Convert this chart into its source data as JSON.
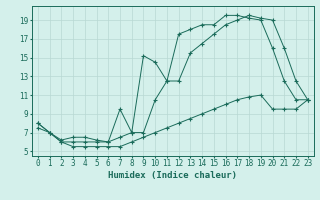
{
  "xlabel": "Humidex (Indice chaleur)",
  "bg_color": "#d4f0eb",
  "grid_color": "#b8d8d3",
  "line_color": "#1a6b5a",
  "line1_x": [
    0,
    1,
    2,
    3,
    4,
    5,
    6,
    7,
    8,
    9,
    10,
    11,
    12,
    13,
    14,
    15,
    16,
    17,
    18,
    19,
    20,
    21,
    22,
    23
  ],
  "line1_y": [
    8.0,
    7.0,
    6.2,
    6.5,
    6.5,
    6.2,
    6.0,
    9.5,
    7.0,
    15.2,
    14.5,
    12.5,
    17.5,
    18.0,
    18.5,
    18.5,
    19.5,
    19.5,
    19.2,
    19.0,
    16.0,
    12.5,
    10.5,
    10.5
  ],
  "line2_x": [
    0,
    1,
    2,
    3,
    4,
    5,
    6,
    7,
    8,
    9,
    10,
    11,
    12,
    13,
    14,
    15,
    16,
    17,
    18,
    19,
    20,
    21,
    22,
    23
  ],
  "line2_y": [
    8.0,
    7.0,
    6.0,
    6.0,
    6.0,
    6.0,
    6.0,
    6.5,
    7.0,
    7.0,
    10.5,
    12.5,
    12.5,
    15.5,
    16.5,
    17.5,
    18.5,
    19.0,
    19.5,
    19.2,
    19.0,
    16.0,
    12.5,
    10.5
  ],
  "line3_x": [
    0,
    1,
    2,
    3,
    4,
    5,
    6,
    7,
    8,
    9,
    10,
    11,
    12,
    13,
    14,
    15,
    16,
    17,
    18,
    19,
    20,
    21,
    22,
    23
  ],
  "line3_y": [
    7.5,
    7.0,
    6.0,
    5.5,
    5.5,
    5.5,
    5.5,
    5.5,
    6.0,
    6.5,
    7.0,
    7.5,
    8.0,
    8.5,
    9.0,
    9.5,
    10.0,
    10.5,
    10.8,
    11.0,
    9.5,
    9.5,
    9.5,
    10.5
  ],
  "xlim": [
    -0.5,
    23.5
  ],
  "ylim": [
    4.5,
    20.5
  ],
  "yticks": [
    5,
    7,
    9,
    11,
    13,
    15,
    17,
    19
  ],
  "xticks": [
    0,
    1,
    2,
    3,
    4,
    5,
    6,
    7,
    8,
    9,
    10,
    11,
    12,
    13,
    14,
    15,
    16,
    17,
    18,
    19,
    20,
    21,
    22,
    23
  ],
  "tick_fontsize": 5.5,
  "xlabel_fontsize": 6.5
}
